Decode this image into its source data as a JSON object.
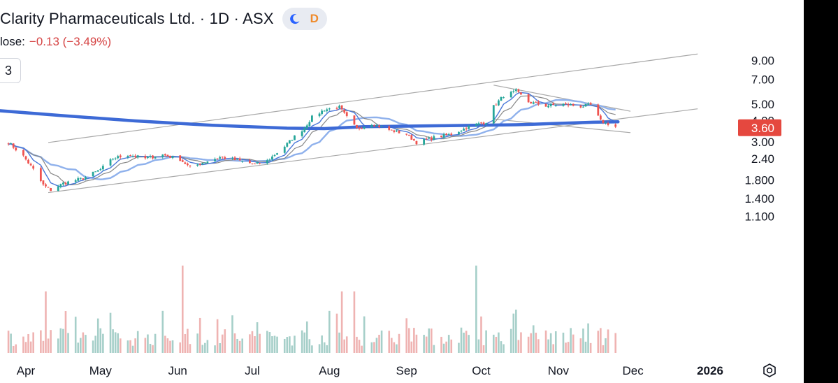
{
  "header": {
    "title": "Clarity Pharmaceuticals Ltd. · 1D · ASX",
    "mode_moon_icon": "moon-icon",
    "mode_letter": "D",
    "change_label": "lose:",
    "change_value": "−0.13 (−3.49%)",
    "interval_label": "3"
  },
  "colors": {
    "up": "#26a69a",
    "down": "#ef5350",
    "ma_blue": "#4a78d9",
    "ma_light": "#8fb1ec",
    "ma_gray": "#888888",
    "ma200": "#3d6ad6",
    "channel": "#a8a8a8",
    "price_tag_bg": "#e5483f",
    "vol_up": "#a6cfc9",
    "vol_down": "#efb3b2"
  },
  "settings_icon": "settings-gear-icon",
  "chart_data": {
    "type": "candlestick",
    "symbol": "Clarity Pharmaceuticals Ltd.",
    "interval": "1D",
    "exchange": "ASX",
    "y_scale": "log",
    "y_ticks": [
      "9.00",
      "7.00",
      "5.00",
      "4.00",
      "3.00",
      "2.40",
      "1.800",
      "1.400",
      "1.100"
    ],
    "last_price": "3.60",
    "x_ticks": [
      "Apr",
      "May",
      "Jun",
      "Jul",
      "Aug",
      "Sep",
      "Oct",
      "Nov",
      "Dec",
      "2026"
    ],
    "close_path": [
      [
        "2025-03-25",
        2.95
      ],
      [
        "2025-03-31",
        2.45
      ],
      [
        "2025-04-04",
        2.05
      ],
      [
        "2025-04-08",
        1.66
      ],
      [
        "2025-04-11",
        1.55
      ],
      [
        "2025-04-16",
        1.7
      ],
      [
        "2025-04-24",
        1.82
      ],
      [
        "2025-05-01",
        2.05
      ],
      [
        "2025-05-06",
        2.38
      ],
      [
        "2025-05-12",
        2.5
      ],
      [
        "2025-05-19",
        2.38
      ],
      [
        "2025-05-26",
        2.5
      ],
      [
        "2025-06-02",
        2.35
      ],
      [
        "2025-06-06",
        2.1
      ],
      [
        "2025-06-11",
        2.25
      ],
      [
        "2025-06-18",
        2.42
      ],
      [
        "2025-06-25",
        2.32
      ],
      [
        "2025-07-02",
        2.2
      ],
      [
        "2025-07-07",
        2.3
      ],
      [
        "2025-07-14",
        2.8
      ],
      [
        "2025-07-18",
        3.2
      ],
      [
        "2025-07-22",
        3.6
      ],
      [
        "2025-07-25",
        4.15
      ],
      [
        "2025-07-30",
        4.6
      ],
      [
        "2025-08-05",
        4.75
      ],
      [
        "2025-08-08",
        4.15
      ],
      [
        "2025-08-12",
        3.55
      ],
      [
        "2025-08-18",
        3.8
      ],
      [
        "2025-08-25",
        3.5
      ],
      [
        "2025-09-01",
        3.3
      ],
      [
        "2025-09-05",
        2.95
      ],
      [
        "2025-09-12",
        3.15
      ],
      [
        "2025-09-19",
        3.3
      ],
      [
        "2025-09-26",
        3.65
      ],
      [
        "2025-10-03",
        3.9
      ],
      [
        "2025-10-06",
        4.8
      ],
      [
        "2025-10-10",
        5.55
      ],
      [
        "2025-10-15",
        5.9
      ],
      [
        "2025-10-20",
        5.1
      ],
      [
        "2025-10-27",
        4.85
      ],
      [
        "2025-11-03",
        4.95
      ],
      [
        "2025-11-10",
        4.8
      ],
      [
        "2025-11-14",
        4.9
      ],
      [
        "2025-11-18",
        3.95
      ],
      [
        "2025-11-24",
        3.65
      ]
    ],
    "volume_spikes": [
      [
        "2025-04-09",
        "high"
      ],
      [
        "2025-06-03",
        "very high"
      ],
      [
        "2025-08-06",
        "high"
      ],
      [
        "2025-08-11",
        "high"
      ],
      [
        "2025-09-29",
        "very high"
      ],
      [
        "2025-10-15",
        "elevated"
      ]
    ],
    "moving_averages": [
      "fast MA (blue)",
      "slower MA (light blue)",
      "MA (gray)",
      "200-day MA (thick blue)"
    ],
    "trend_channel": "ascending channel with a shorter descending channel from October highs"
  }
}
